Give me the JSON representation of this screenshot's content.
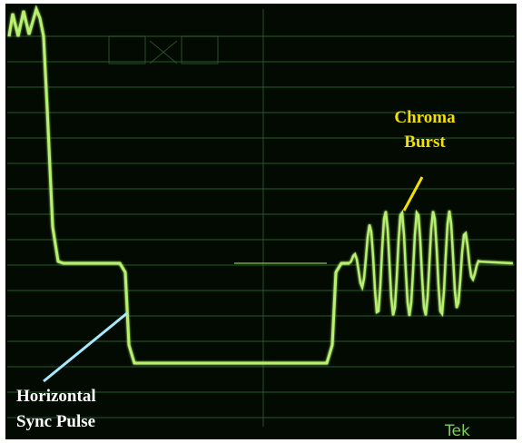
{
  "annotations": {
    "chroma_burst": [
      "Chroma",
      "Burst"
    ],
    "horizontal_sync": [
      "Horizontal",
      "Sync Pulse"
    ]
  },
  "brand": "Tek"
}
